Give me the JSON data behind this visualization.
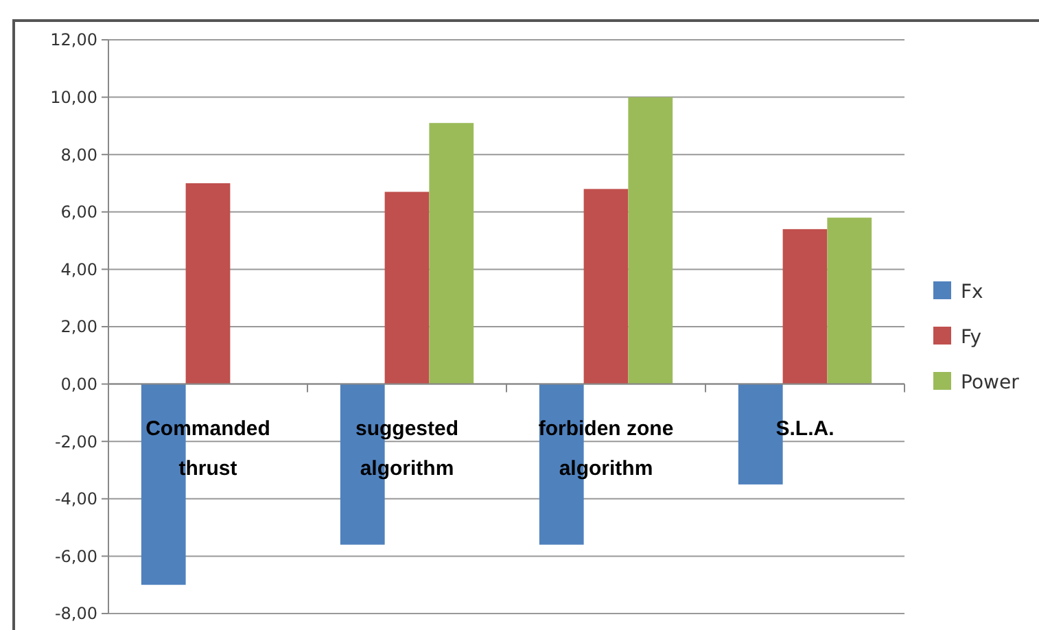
{
  "chart_data": {
    "type": "bar",
    "categories": [
      "Commanded thrust",
      "suggested algorithm",
      "forbiden zone algorithm",
      "S.L.A."
    ],
    "series": [
      {
        "name": "Fx",
        "color": "#4f81bd",
        "values": [
          -7.0,
          -5.6,
          -5.6,
          -3.5
        ]
      },
      {
        "name": "Fy",
        "color": "#c0504d",
        "values": [
          7.0,
          6.7,
          6.8,
          5.4
        ]
      },
      {
        "name": "Power",
        "color": "#9bbb59",
        "values": [
          null,
          9.1,
          10.0,
          5.8
        ]
      }
    ],
    "ylim": [
      -8,
      12
    ],
    "yticks": [
      {
        "value": -8,
        "label": "-8,00"
      },
      {
        "value": -6,
        "label": "-6,00"
      },
      {
        "value": -4,
        "label": "-4,00"
      },
      {
        "value": -2,
        "label": "-2,00"
      },
      {
        "value": 0,
        "label": "0,00"
      },
      {
        "value": 2,
        "label": "2,00"
      },
      {
        "value": 4,
        "label": "4,00"
      },
      {
        "value": 6,
        "label": "6,00"
      },
      {
        "value": 8,
        "label": "8,00"
      },
      {
        "value": 10,
        "label": "10,00"
      },
      {
        "value": 12,
        "label": "12,00"
      }
    ],
    "grid": "y",
    "legend": "right"
  }
}
